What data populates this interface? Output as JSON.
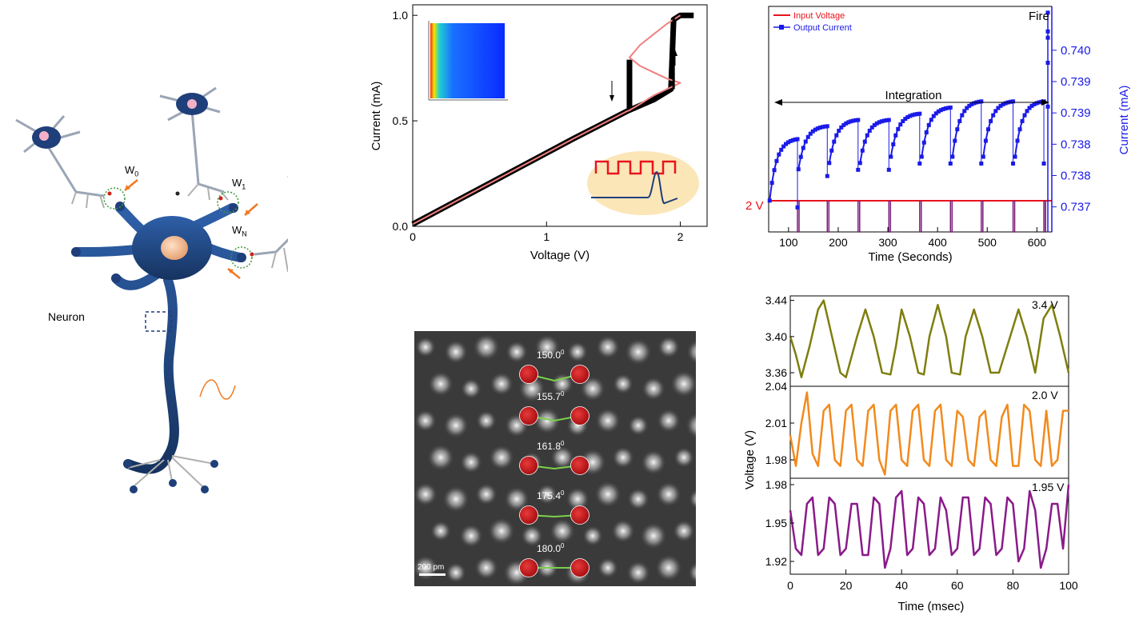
{
  "neuron_panel": {
    "label": "Neuron",
    "weights": [
      {
        "main": "W",
        "sub": "0"
      },
      {
        "main": "W",
        "sub": "1"
      },
      {
        "main": "W",
        "sub": "N"
      }
    ],
    "colors": {
      "body": "#1f3f7a",
      "dendrite": "#b0b0b0",
      "arrow": "#f07a24",
      "nucleus": "#f2c19a"
    }
  },
  "stem_panel": {
    "scale_bar": "200 pm",
    "angles": [
      "150.0",
      "155.7",
      "161.8",
      "175.4",
      "180.0"
    ],
    "angle_superscript": "0",
    "colors": {
      "atom": "#c4161c",
      "bond": "#7ad14a"
    }
  },
  "chart_data": [
    {
      "type": "line",
      "xlabel": "Voltage (V)",
      "ylabel": "Current (mA)",
      "xlim": [
        0,
        2.2
      ],
      "ylim": [
        0,
        1.05
      ],
      "xticks": [
        {
          "v": 0,
          "label": "0"
        },
        {
          "v": 1,
          "label": "1"
        },
        {
          "v": 2,
          "label": "2"
        }
      ],
      "yticks": [
        {
          "v": 0,
          "label": "0.0"
        },
        {
          "v": 0.5,
          "label": "0.5"
        },
        {
          "v": 1,
          "label": "1.0"
        }
      ],
      "series": [
        {
          "color": "#000000",
          "x": [
            0,
            0.4,
            0.8,
            1.2,
            1.6,
            1.8,
            1.93,
            1.95,
            2.0,
            2.1
          ],
          "y": [
            0.01,
            0.145,
            0.28,
            0.415,
            0.545,
            0.6,
            0.65,
            0.98,
            1.0,
            1.0
          ]
        },
        {
          "color": "#ffffff",
          "x": [
            1.93,
            1.95,
            1.95,
            1.95
          ],
          "y": [
            0.65,
            0.75,
            0.9,
            0.98
          ]
        },
        {
          "color": "#000000",
          "x": [
            1.62,
            1.62,
            1.62
          ],
          "y": [
            0.56,
            0.65,
            0.79
          ]
        },
        {
          "color": "#f08080",
          "x": [
            0,
            0.4,
            0.8,
            1.2,
            1.6,
            1.62,
            1.7,
            1.8,
            1.9,
            2.0,
            1.9,
            1.8,
            1.7,
            1.62,
            1.7,
            1.8,
            1.9,
            2.0
          ],
          "y": [
            0.01,
            0.145,
            0.28,
            0.415,
            0.545,
            0.55,
            0.58,
            0.62,
            0.65,
            0.68,
            0.7,
            0.73,
            0.76,
            0.8,
            0.86,
            0.91,
            0.96,
            1.0
          ]
        }
      ]
    },
    {
      "type": "line",
      "xlabel": "Time (Seconds)",
      "ylabel": "Current (mA)",
      "xlim": [
        60,
        630
      ],
      "ylim": [
        0.7366,
        0.7402
      ],
      "xticks": [
        {
          "v": 100,
          "label": "100"
        },
        {
          "v": 200,
          "label": "200"
        },
        {
          "v": 300,
          "label": "300"
        },
        {
          "v": 400,
          "label": "400"
        },
        {
          "v": 500,
          "label": "500"
        },
        {
          "v": 600,
          "label": "600"
        }
      ],
      "yticks": [
        {
          "v": 0.737,
          "label": "0.737"
        },
        {
          "v": 0.7375,
          "label": "0.738"
        },
        {
          "v": 0.738,
          "label": "0.738"
        },
        {
          "v": 0.7385,
          "label": "0.739"
        },
        {
          "v": 0.739,
          "label": "0.739"
        },
        {
          "v": 0.7395,
          "label": "0.740"
        }
      ],
      "legend": [
        "Input Voltage",
        "Output Current"
      ],
      "legend_placement": "top-left",
      "annotations": {
        "integration": "Integration",
        "fire": "Fire",
        "input_level": "2 V"
      },
      "cycles": [
        {
          "start": 62,
          "end": 118,
          "low": 0.7371,
          "high": 0.7381
        },
        {
          "start": 120,
          "end": 178,
          "low": 0.7376,
          "high": 0.7383
        },
        {
          "start": 182,
          "end": 240,
          "low": 0.7377,
          "high": 0.7384
        },
        {
          "start": 244,
          "end": 302,
          "low": 0.7377,
          "high": 0.7384
        },
        {
          "start": 306,
          "end": 364,
          "low": 0.7378,
          "high": 0.7385
        },
        {
          "start": 368,
          "end": 426,
          "low": 0.7378,
          "high": 0.7386
        },
        {
          "start": 430,
          "end": 488,
          "low": 0.7378,
          "high": 0.7387
        },
        {
          "start": 492,
          "end": 552,
          "low": 0.7378,
          "high": 0.7387
        },
        {
          "start": 556,
          "end": 614,
          "low": 0.7378,
          "high": 0.7387
        }
      ],
      "spike": {
        "x": 622,
        "values": [
          0.7386,
          0.7393,
          0.7397,
          0.7401,
          0.7398
        ]
      },
      "colors": {
        "input": "#e8141c",
        "output": "#1a1ae8",
        "pulse": "#7b1e7a"
      }
    },
    {
      "type": "line",
      "xlabel": "Time (msec)",
      "ylabel": "Voltage (V)",
      "xlim": [
        0,
        100
      ],
      "xticks": [
        {
          "v": 0,
          "label": "0"
        },
        {
          "v": 20,
          "label": "20"
        },
        {
          "v": 40,
          "label": "40"
        },
        {
          "v": 60,
          "label": "60"
        },
        {
          "v": 80,
          "label": "80"
        },
        {
          "v": 100,
          "label": "100"
        }
      ],
      "series": [
        {
          "name": "3.4 V",
          "color": "#7e7e0f",
          "ylim": [
            3.345,
            3.445
          ],
          "yticks": [
            {
              "v": 3.36,
              "label": "3.36"
            },
            {
              "v": 3.4,
              "label": "3.40"
            },
            {
              "v": 3.44,
              "label": "3.44"
            }
          ],
          "x": [
            0,
            2,
            4,
            7,
            10,
            12,
            15,
            18,
            20,
            24,
            27,
            30,
            33,
            36,
            38,
            40,
            43,
            46,
            48,
            50,
            53,
            56,
            58,
            61,
            63,
            66,
            69,
            72,
            75,
            79,
            82,
            85,
            88,
            91,
            94,
            97,
            100
          ],
          "y": [
            3.4,
            3.38,
            3.355,
            3.39,
            3.43,
            3.44,
            3.4,
            3.36,
            3.355,
            3.4,
            3.43,
            3.4,
            3.36,
            3.358,
            3.39,
            3.43,
            3.4,
            3.36,
            3.358,
            3.4,
            3.435,
            3.4,
            3.36,
            3.358,
            3.4,
            3.43,
            3.4,
            3.36,
            3.36,
            3.4,
            3.43,
            3.4,
            3.36,
            3.42,
            3.435,
            3.4,
            3.36
          ]
        },
        {
          "name": "2.0 V",
          "color": "#f28a1c",
          "ylim": [
            1.965,
            2.04
          ],
          "yticks": [
            {
              "v": 1.98,
              "label": "1.98"
            },
            {
              "v": 2.01,
              "label": "2.01"
            },
            {
              "v": 2.04,
              "label": "2.04"
            }
          ],
          "x": [
            0,
            2,
            4,
            6,
            8,
            10,
            12,
            14,
            16,
            18,
            20,
            22,
            24,
            26,
            28,
            30,
            32,
            34,
            36,
            38,
            40,
            42,
            44,
            46,
            48,
            50,
            52,
            54,
            56,
            58,
            60,
            62,
            64,
            66,
            68,
            70,
            72,
            74,
            76,
            78,
            80,
            82,
            84,
            86,
            88,
            90,
            92,
            94,
            96,
            98,
            100
          ],
          "y": [
            2.0,
            1.975,
            2.01,
            2.035,
            1.985,
            1.975,
            2.02,
            2.025,
            1.98,
            1.975,
            2.02,
            2.025,
            1.98,
            1.975,
            2.02,
            2.025,
            1.98,
            1.968,
            2.02,
            2.025,
            1.98,
            1.975,
            2.02,
            2.025,
            1.98,
            1.975,
            2.02,
            2.025,
            1.98,
            1.975,
            2.02,
            2.015,
            1.98,
            1.975,
            2.015,
            2.02,
            1.98,
            1.975,
            2.015,
            2.025,
            1.975,
            1.975,
            2.025,
            2.02,
            1.98,
            1.975,
            2.02,
            1.975,
            1.98,
            2.02,
            2.02
          ]
        },
        {
          "name": "1.95 V",
          "color": "#8a1a8a",
          "ylim": [
            1.91,
            1.985
          ],
          "yticks": [
            {
              "v": 1.92,
              "label": "1.92"
            },
            {
              "v": 1.95,
              "label": "1.95"
            },
            {
              "v": 1.98,
              "label": "1.98"
            }
          ],
          "x": [
            0,
            2,
            4,
            6,
            8,
            10,
            12,
            14,
            16,
            18,
            20,
            22,
            24,
            26,
            28,
            30,
            32,
            34,
            36,
            38,
            40,
            42,
            44,
            46,
            48,
            50,
            52,
            54,
            56,
            58,
            60,
            62,
            64,
            66,
            68,
            70,
            72,
            74,
            76,
            78,
            80,
            82,
            84,
            86,
            88,
            90,
            92,
            94,
            96,
            98,
            100
          ],
          "y": [
            1.96,
            1.93,
            1.925,
            1.965,
            1.97,
            1.925,
            1.93,
            1.97,
            1.965,
            1.925,
            1.93,
            1.965,
            1.965,
            1.925,
            1.925,
            1.97,
            1.965,
            1.915,
            1.93,
            1.97,
            1.975,
            1.925,
            1.93,
            1.97,
            1.965,
            1.925,
            1.93,
            1.97,
            1.96,
            1.925,
            1.93,
            1.97,
            1.97,
            1.925,
            1.93,
            1.97,
            1.965,
            1.925,
            1.93,
            1.97,
            1.965,
            1.92,
            1.93,
            1.975,
            1.96,
            1.915,
            1.93,
            1.965,
            1.965,
            1.93,
            1.98
          ]
        }
      ]
    }
  ]
}
